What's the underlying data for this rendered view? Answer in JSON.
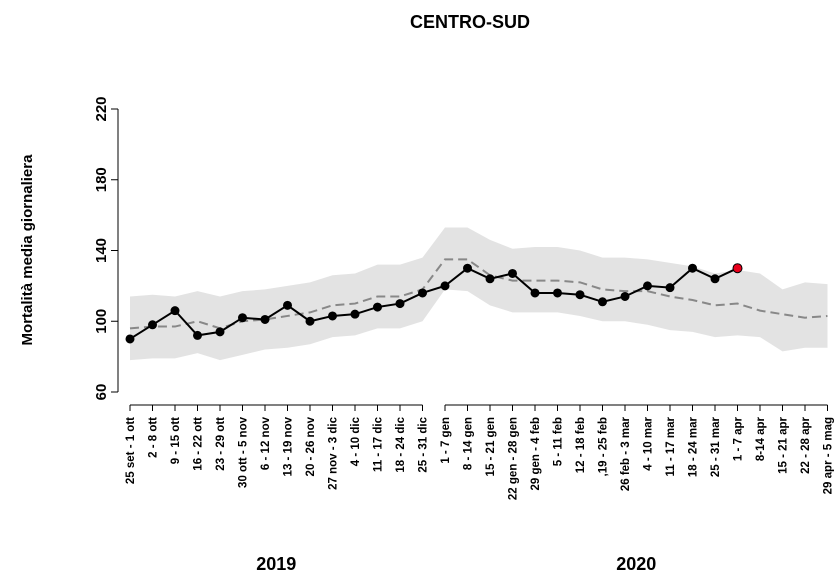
{
  "chart_data": {
    "type": "line",
    "title": "CENTRO-SUD",
    "y_label": "Mortalità media giornaliera",
    "categories": [
      "25 set - 1 ott",
      "2 - 8 ott",
      "9 - 15 ott",
      "16 - 22 ott",
      "23 - 29 ott",
      "30 ott - 5 nov",
      "6 - 12 nov",
      "13 - 19 nov",
      "20 - 26 nov",
      "27 nov - 3 dic",
      "4 - 10 dic",
      "11 - 17 dic",
      "18 - 24 dic",
      "25 - 31 dic",
      "1 - 7 gen",
      "8 - 14 gen",
      "15 - 21 gen",
      "22 gen - 28 gen",
      "29 gen - 4 feb",
      "5 - 11 feb",
      "12 - 18 feb",
      ",19 - 25 feb",
      "26 feb - 3 mar",
      "4 - 10 mar",
      "11 - 17 mar",
      "18 - 24 mar",
      "25 - 31 mar",
      "1 - 7 apr",
      "8-14 apr",
      "15 - 21 apr",
      "22 - 28 apr",
      "29 apr - 5 mag"
    ],
    "groups": [
      {
        "label": "2019",
        "start": 0,
        "end": 13
      },
      {
        "label": "2020",
        "start": 14,
        "end": 31
      }
    ],
    "band": {
      "color": "#e3e3e3",
      "upper": [
        114,
        115,
        114,
        117,
        114,
        117,
        118,
        120,
        122,
        126,
        127,
        132,
        132,
        136,
        153,
        153,
        146,
        141,
        142,
        142,
        140,
        136,
        136,
        135,
        133,
        131,
        127,
        129,
        127,
        118,
        122,
        121
      ],
      "lower": [
        78,
        79,
        79,
        82,
        78,
        81,
        84,
        85,
        87,
        91,
        92,
        96,
        96,
        100,
        118,
        117,
        109,
        105,
        105,
        105,
        103,
        100,
        100,
        98,
        95,
        94,
        91,
        92,
        91,
        83,
        85,
        85
      ]
    },
    "series": [
      {
        "color": "#888888",
        "dashed": true,
        "markers": false,
        "values": [
          96,
          97,
          97,
          100,
          96,
          100,
          101,
          103,
          105,
          109,
          110,
          114,
          114,
          118,
          135,
          135,
          126,
          123,
          123,
          123,
          122,
          118,
          117,
          117,
          114,
          112,
          109,
          110,
          106,
          104,
          102,
          103
        ]
      },
      {
        "color": "#000000",
        "dashed": false,
        "markers": true,
        "last_marker_color": "#e8001c",
        "values": [
          90,
          98,
          106,
          92,
          94,
          102,
          101,
          109,
          100,
          103,
          104,
          108,
          110,
          116,
          120,
          130,
          124,
          127,
          116,
          116,
          115,
          111,
          114,
          120,
          119,
          130,
          124,
          130,
          null,
          null,
          null,
          null
        ]
      }
    ],
    "ylim": [
      60,
      220
    ],
    "yticks": [
      60,
      100,
      140,
      180,
      220
    ]
  }
}
